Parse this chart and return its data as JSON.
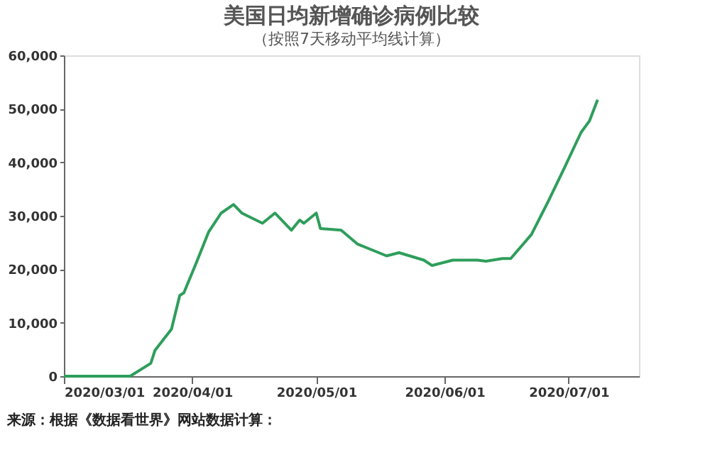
{
  "chart_data": {
    "type": "line",
    "title": "美国日均新增确诊病例比较",
    "subtitle": "（按照7天移动平均线计算）",
    "annotations": [
      "来源：根据《数据看世界》网站数据计算："
    ],
    "x": [
      "2020-03-01",
      "2020-03-17",
      "2020-03-22",
      "2020-03-23",
      "2020-03-27",
      "2020-03-29",
      "2020-03-30",
      "2020-04-02",
      "2020-04-05",
      "2020-04-08",
      "2020-04-11",
      "2020-04-13",
      "2020-04-18",
      "2020-04-21",
      "2020-04-25",
      "2020-04-27",
      "2020-04-28",
      "2020-05-01",
      "2020-05-02",
      "2020-05-07",
      "2020-05-11",
      "2020-05-18",
      "2020-05-21",
      "2020-05-27",
      "2020-05-29",
      "2020-06-03",
      "2020-06-09",
      "2020-06-11",
      "2020-06-15",
      "2020-06-17",
      "2020-06-22",
      "2020-06-26",
      "2020-06-30",
      "2020-07-04",
      "2020-07-06",
      "2020-07-08"
    ],
    "series": [
      {
        "color": "#2e9e5b",
        "values": [
          0,
          0,
          2400,
          4800,
          8800,
          15100,
          15600,
          21200,
          27000,
          30500,
          32100,
          30500,
          28600,
          30500,
          27300,
          29200,
          28600,
          30500,
          27600,
          27300,
          24700,
          22500,
          23100,
          21700,
          20700,
          21700,
          21700,
          21500,
          22000,
          22000,
          26500,
          32600,
          39000,
          45600,
          47700,
          51700
        ]
      }
    ],
    "xlim": [
      "2020-03-01",
      "2020-07-18"
    ],
    "xticks": [
      {
        "value": "2020-03-01",
        "label": "2020/03/01"
      },
      {
        "value": "2020-04-01",
        "label": "2020/04/01"
      },
      {
        "value": "2020-05-01",
        "label": "2020/05/01"
      },
      {
        "value": "2020-06-01",
        "label": "2020/06/01"
      },
      {
        "value": "2020-07-01",
        "label": "2020/07/01"
      }
    ],
    "ylim": [
      0,
      60000
    ],
    "yticks": [
      0,
      {
        "value": 10000,
        "label": "10,000"
      },
      {
        "value": 20000,
        "label": "20,000"
      },
      {
        "value": 30000,
        "label": "30,000"
      },
      {
        "value": 40000,
        "label": "40,000"
      },
      {
        "value": 50000,
        "label": "50,000"
      },
      {
        "value": 60000,
        "label": "60,000"
      }
    ],
    "grid": false,
    "legend": false,
    "marker": "none",
    "line_style": "solid"
  }
}
